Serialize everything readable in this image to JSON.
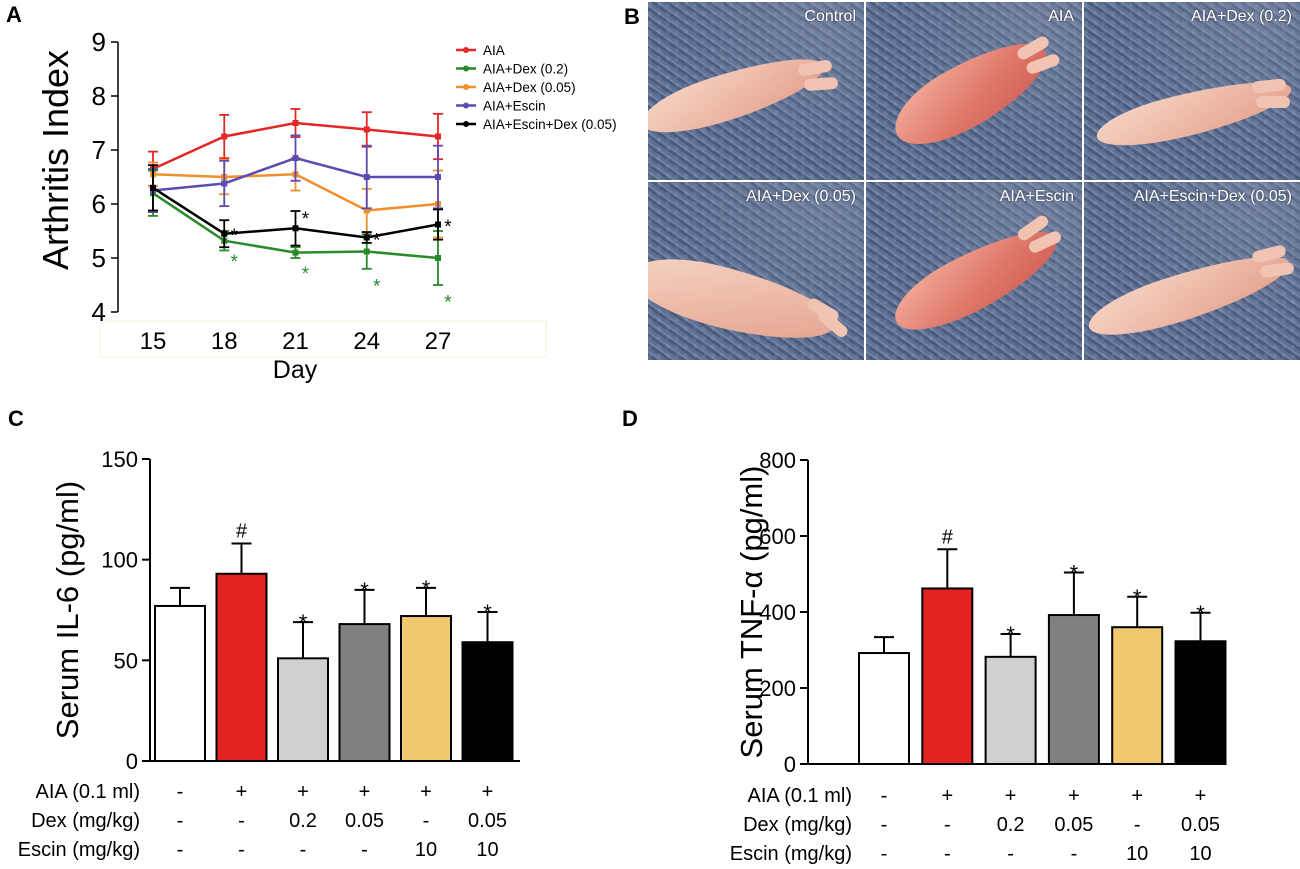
{
  "panel_letters": {
    "a": "A",
    "b": "B",
    "c": "C",
    "d": "D"
  },
  "photos": {
    "labels": [
      "Control",
      "AIA",
      "AIA+Dex (0.2)",
      "AIA+Dex (0.05)",
      "AIA+Escin",
      "AIA+Escin+Dex (0.05)"
    ]
  },
  "table_rows": [
    {
      "label": "AIA (0.1 ml)",
      "values": [
        "-",
        "+",
        "+",
        "+",
        "+",
        "+"
      ]
    },
    {
      "label": "Dex (mg/kg)",
      "values": [
        "-",
        "-",
        "0.2",
        "0.05",
        "-",
        "0.05"
      ]
    },
    {
      "label": "Escin (mg/kg)",
      "values": [
        "-",
        "-",
        "-",
        "-",
        "10",
        "10"
      ]
    }
  ],
  "chart_data": [
    {
      "panel": "A",
      "type": "line",
      "xlabel": "Day",
      "ylabel": "Arthritis Index",
      "x": [
        15,
        18,
        21,
        24,
        27
      ],
      "ylim": [
        4,
        9
      ],
      "yticks": [
        4,
        5,
        6,
        7,
        8,
        9
      ],
      "legend_position": "top-right",
      "series": [
        {
          "name": "AIA",
          "color": "#e32626",
          "values": [
            6.65,
            7.25,
            7.5,
            7.38,
            7.25
          ],
          "errors": [
            0.32,
            0.4,
            0.26,
            0.32,
            0.42
          ]
        },
        {
          "name": "AIA+Dex (0.2)",
          "color": "#2a8a2a",
          "values": [
            6.2,
            5.32,
            5.1,
            5.12,
            5.0
          ],
          "errors": [
            0.42,
            0.18,
            0.1,
            0.32,
            0.5
          ]
        },
        {
          "name": "AIA+Dex (0.05)",
          "color": "#f28e2b",
          "values": [
            6.55,
            6.5,
            6.55,
            5.88,
            6.0
          ],
          "errors": [
            0.22,
            0.32,
            0.3,
            0.4,
            0.62
          ]
        },
        {
          "name": "AIA+Escin",
          "color": "#5c4bb0",
          "values": [
            6.25,
            6.38,
            6.85,
            6.5,
            6.5
          ],
          "errors": [
            0.4,
            0.42,
            0.42,
            0.58,
            0.58
          ]
        },
        {
          "name": "AIA+Escin+Dex (0.05)",
          "color": "#000000",
          "values": [
            6.3,
            5.45,
            5.55,
            5.38,
            5.62
          ],
          "errors": [
            0.42,
            0.25,
            0.32,
            0.1,
            0.28
          ]
        }
      ],
      "annotations": [
        {
          "text": "*",
          "x": 18,
          "y": 5.48,
          "color": "#000000"
        },
        {
          "text": "*",
          "x": 21,
          "y": 5.8,
          "color": "#000000"
        },
        {
          "text": "*",
          "x": 24,
          "y": 5.4,
          "color": "#000000"
        },
        {
          "text": "*",
          "x": 27,
          "y": 5.65,
          "color": "#000000"
        },
        {
          "text": "*",
          "x": 18,
          "y": 5.0,
          "color": "#2a8a2a"
        },
        {
          "text": "*",
          "x": 21,
          "y": 4.78,
          "color": "#2a8a2a"
        },
        {
          "text": "*",
          "x": 24,
          "y": 4.55,
          "color": "#2a8a2a"
        },
        {
          "text": "*",
          "x": 27,
          "y": 4.25,
          "color": "#2a8a2a"
        }
      ]
    },
    {
      "panel": "C",
      "type": "bar",
      "ylabel": "Serum IL-6 (pg/ml)",
      "ylim": [
        0,
        150
      ],
      "yticks": [
        0,
        50,
        100,
        150
      ],
      "values": [
        77,
        93,
        51,
        68,
        72,
        59
      ],
      "errors": [
        9,
        15,
        18,
        17,
        14,
        15
      ],
      "colors": [
        "#ffffff",
        "#e32222",
        "#d0d0d0",
        "#808080",
        "#f2c86e",
        "#000000"
      ],
      "marks": [
        "",
        "#",
        "*",
        "*",
        "*",
        "*"
      ]
    },
    {
      "panel": "D",
      "type": "bar",
      "ylabel": "Serum TNF-α (pg/ml)",
      "ylim": [
        0,
        800
      ],
      "yticks": [
        0,
        200,
        400,
        600,
        800
      ],
      "values": [
        292,
        462,
        282,
        392,
        360,
        323
      ],
      "errors": [
        42,
        103,
        60,
        112,
        80,
        75
      ],
      "colors": [
        "#ffffff",
        "#e32222",
        "#d0d0d0",
        "#808080",
        "#f2c86e",
        "#000000"
      ],
      "marks": [
        "",
        "#",
        "*",
        "*",
        "*",
        "*"
      ]
    }
  ]
}
